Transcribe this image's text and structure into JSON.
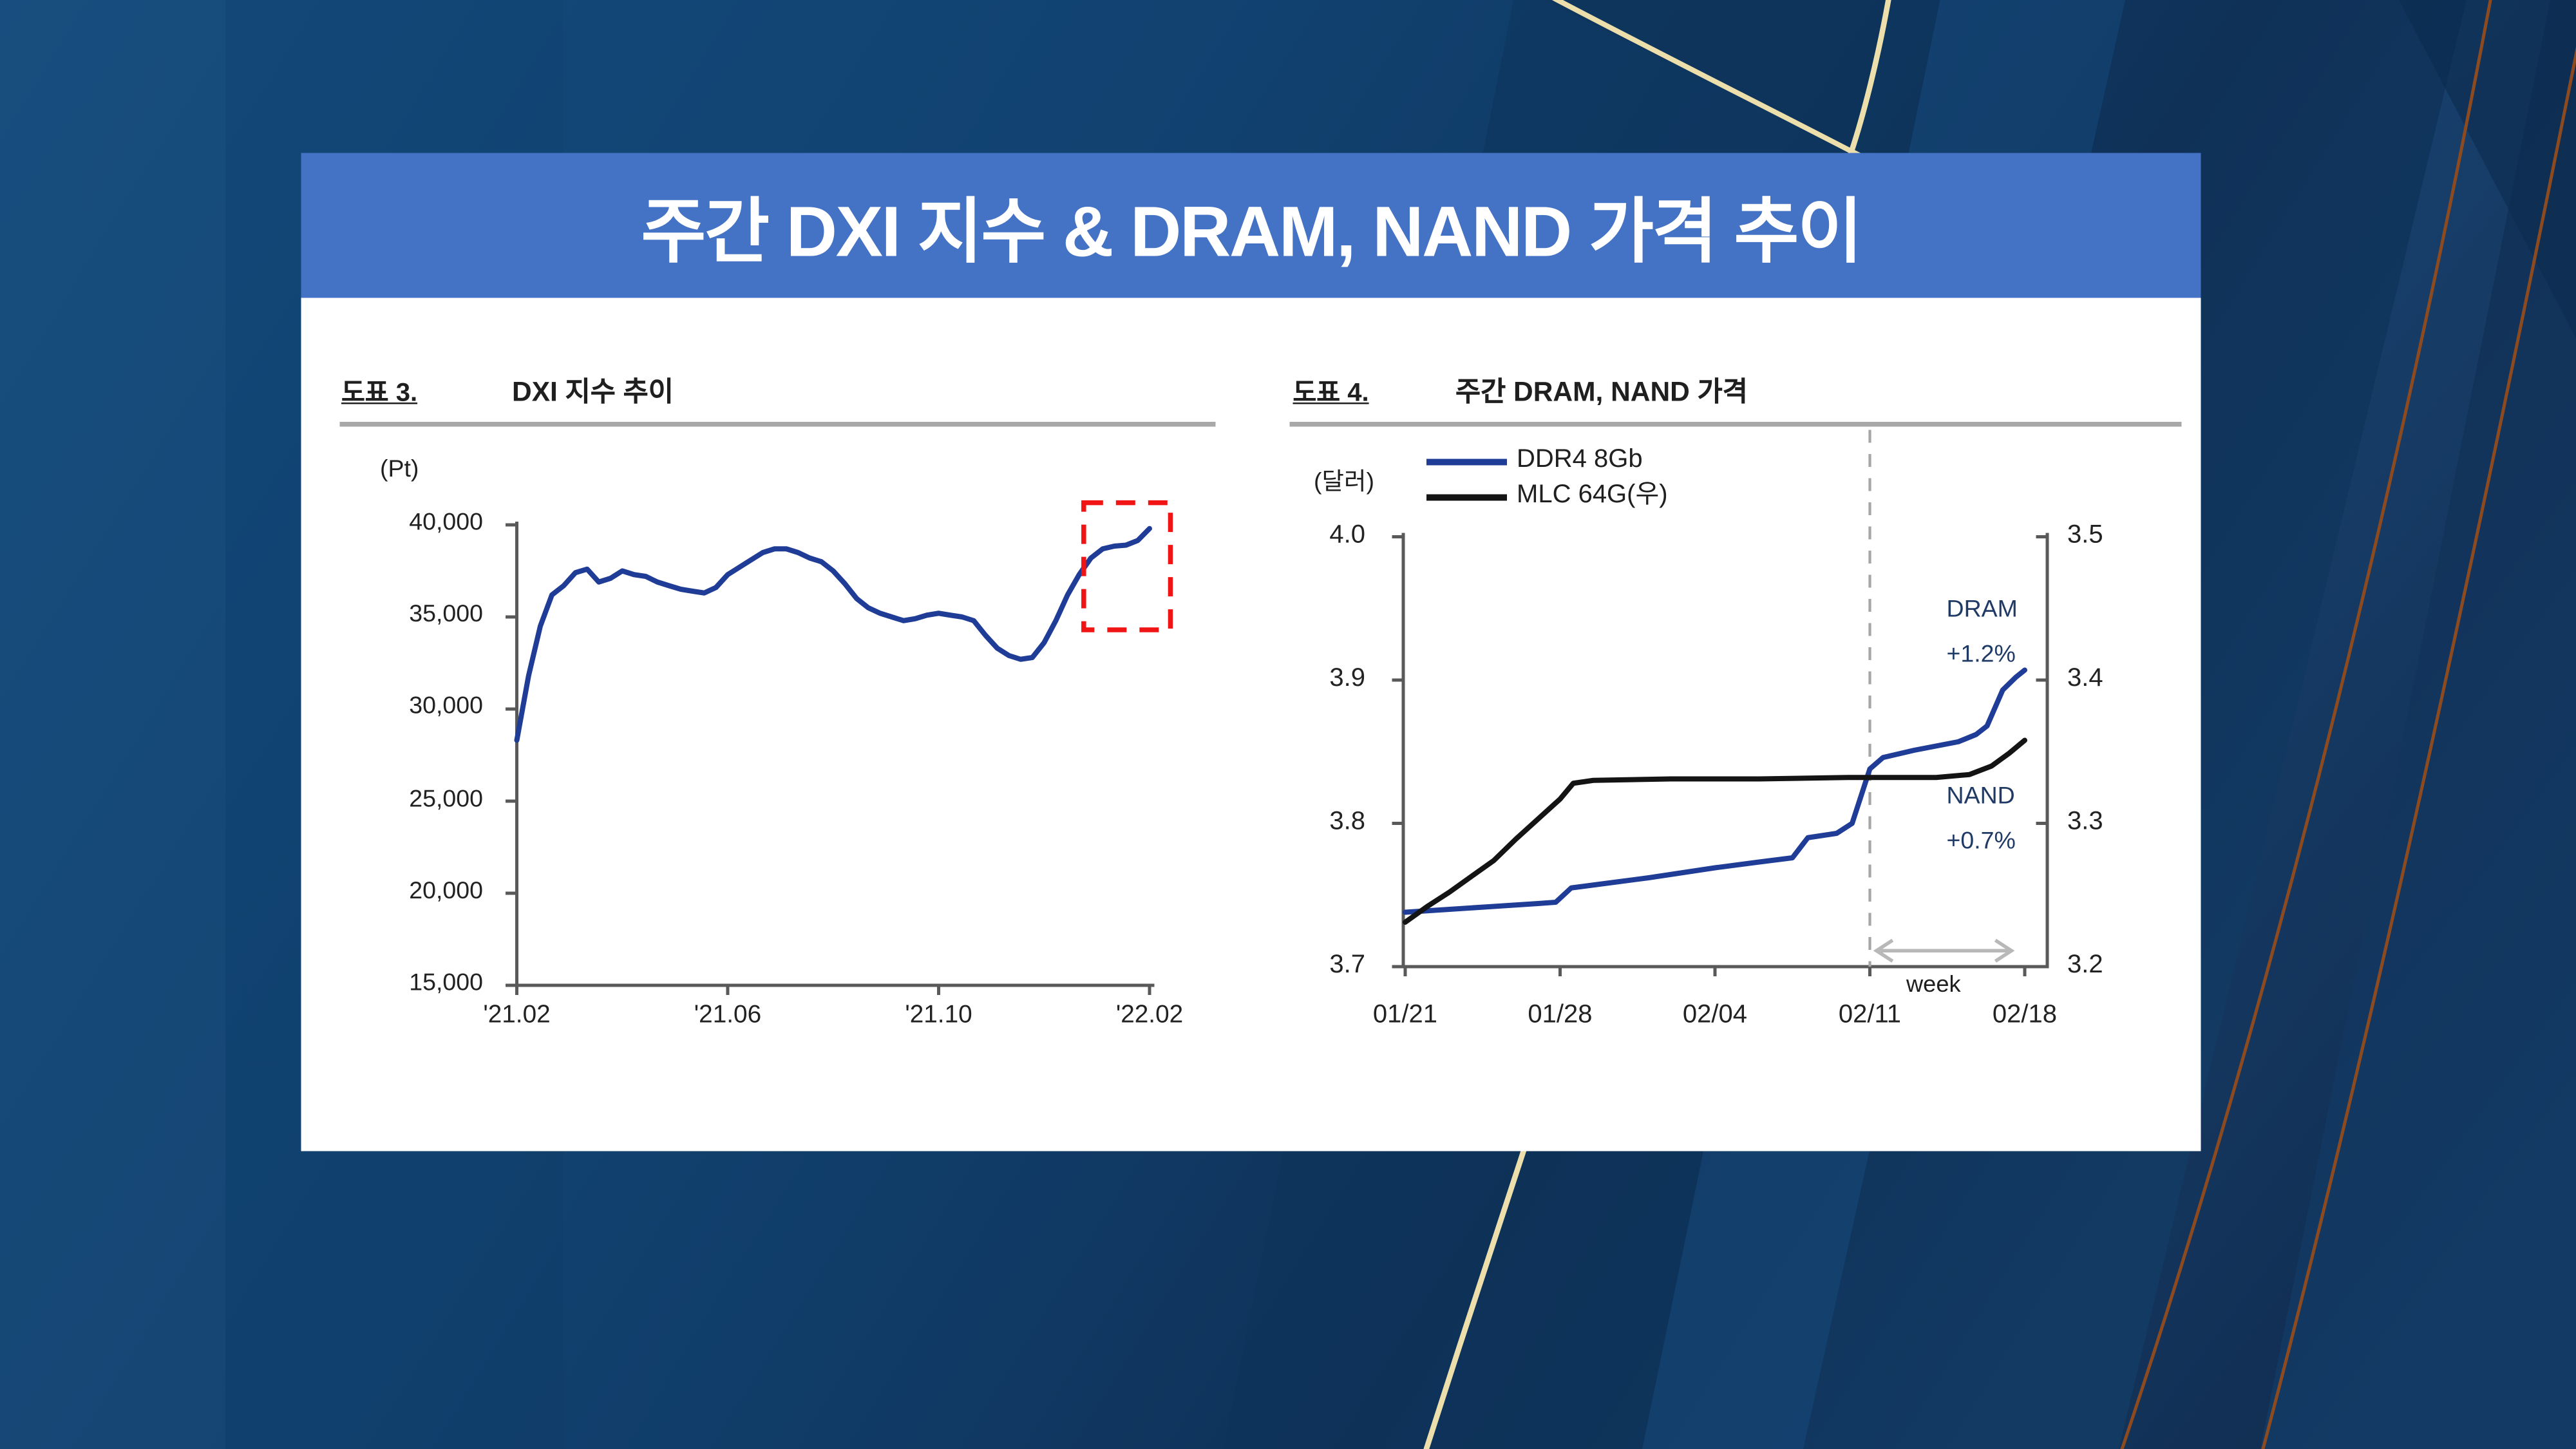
{
  "slide_title": "주간 DXI 지수 & DRAM, NAND 가격 추이",
  "colors": {
    "banner_bg": "#4472C4",
    "banner_text": "#ffffff",
    "panel_bg": "#ffffff",
    "line_blue": "#1f3c96",
    "line_black": "#141414",
    "axis_gray": "#595959",
    "rule_gray": "#a8a8a8",
    "red_box": "#f01414",
    "dashed_gray": "#a6a6a6",
    "arrow_gray": "#b8b8b8",
    "annotation_navy": "#203a66",
    "background_navy": "#124a7a",
    "gold_line": "#ecdfab",
    "sienna_line": "#8c4a21"
  },
  "left_chart": {
    "label": "도표 3.",
    "title": "DXI 지수 추이",
    "unit": "(Pt)"
  },
  "right_chart": {
    "label": "도표 4.",
    "title": "주간 DRAM, NAND 가격",
    "unit": "(달러)",
    "legend": [
      {
        "name": "DDR4 8Gb",
        "color_key": "line_blue"
      },
      {
        "name": "MLC 64G(우)",
        "color_key": "line_black"
      }
    ],
    "annotations": {
      "dram_label": "DRAM",
      "dram_change": "+1.2%",
      "nand_label": "NAND",
      "nand_change": "+0.7%",
      "week_label": "week"
    }
  },
  "chart_data": [
    {
      "type": "line",
      "title": "DXI 지수 추이",
      "ylabel": "(Pt)",
      "ylim": [
        15000,
        40000
      ],
      "grid": false,
      "y_ticks": [
        {
          "label": "40,000",
          "value": 40000
        },
        {
          "label": "35,000",
          "value": 35000
        },
        {
          "label": "30,000",
          "value": 30000
        },
        {
          "label": "25,000",
          "value": 25000
        },
        {
          "label": "20,000",
          "value": 20000
        },
        {
          "label": "15,000",
          "value": 15000
        }
      ],
      "x_ticks": [
        {
          "label": "'21.02",
          "t": 0
        },
        {
          "label": "'21.06",
          "t": 0.3333
        },
        {
          "label": "'21.10",
          "t": 0.6667
        },
        {
          "label": "'22.02",
          "t": 1
        }
      ],
      "series": [
        {
          "name": "DXI index",
          "color_key": "line_blue",
          "values": [
            28300,
            31800,
            34500,
            36200,
            36700,
            37400,
            37600,
            36900,
            37100,
            37500,
            37300,
            37200,
            36900,
            36700,
            36500,
            36400,
            36300,
            36600,
            37300,
            37700,
            38100,
            38500,
            38700,
            38700,
            38500,
            38200,
            38000,
            37500,
            36800,
            36000,
            35500,
            35200,
            35000,
            34800,
            34900,
            35100,
            35200,
            35100,
            35000,
            34800,
            34000,
            33300,
            32900,
            32700,
            32800,
            33600,
            34800,
            36200,
            37300,
            38200,
            38700,
            38850,
            38900,
            39150,
            39800
          ]
        }
      ],
      "highlight_box": {
        "style": "red-dashed",
        "x_from_t": 0.896,
        "x_to_t": 1.033,
        "value_top": 41200,
        "value_bottom": 34300
      }
    },
    {
      "type": "line-dual-axis",
      "title": "주간 DRAM, NAND 가격",
      "left_axis": {
        "unit": "(달러)",
        "range": [
          3.7,
          4.0
        ],
        "ticks": [
          {
            "label": "4.0",
            "value": 4.0
          },
          {
            "label": "3.9",
            "value": 3.9
          },
          {
            "label": "3.8",
            "value": 3.8
          },
          {
            "label": "3.7",
            "value": 3.7
          }
        ]
      },
      "right_axis": {
        "range": [
          3.2,
          3.5
        ],
        "ticks": [
          {
            "label": "3.5",
            "value": 3.5
          },
          {
            "label": "3.4",
            "value": 3.4
          },
          {
            "label": "3.3",
            "value": 3.3
          },
          {
            "label": "3.2",
            "value": 3.2
          }
        ]
      },
      "x_range_days": [
        0,
        28
      ],
      "x_ticks": [
        {
          "label": "01/21",
          "day": 0
        },
        {
          "label": "01/28",
          "day": 7
        },
        {
          "label": "02/04",
          "day": 14
        },
        {
          "label": "02/11",
          "day": 21
        },
        {
          "label": "02/18",
          "day": 28
        }
      ],
      "dashed_vline_day": 21,
      "week_arrow_days": [
        21.3,
        27.4
      ],
      "series": [
        {
          "name": "DDR4 8Gb",
          "axis": "left",
          "color_key": "line_blue",
          "points": [
            [
              0,
              3.738
            ],
            [
              2,
              3.74
            ],
            [
              4,
              3.742
            ],
            [
              6,
              3.744
            ],
            [
              6.8,
              3.745
            ],
            [
              7.5,
              3.755
            ],
            [
              9,
              3.758
            ],
            [
              11,
              3.762
            ],
            [
              14,
              3.769
            ],
            [
              16,
              3.773
            ],
            [
              17.5,
              3.776
            ],
            [
              18.2,
              3.79
            ],
            [
              19.5,
              3.793
            ],
            [
              20.2,
              3.8
            ],
            [
              21,
              3.838
            ],
            [
              21.6,
              3.846
            ],
            [
              23,
              3.851
            ],
            [
              25,
              3.857
            ],
            [
              25.8,
              3.862
            ],
            [
              26.3,
              3.868
            ],
            [
              27,
              3.893
            ],
            [
              27.6,
              3.902
            ],
            [
              28,
              3.907
            ]
          ]
        },
        {
          "name": "MLC 64G(우)",
          "axis": "right",
          "color_key": "line_black",
          "points": [
            [
              0,
              3.231
            ],
            [
              1,
              3.242
            ],
            [
              2,
              3.252
            ],
            [
              3,
              3.263
            ],
            [
              4,
              3.274
            ],
            [
              5,
              3.289
            ],
            [
              6,
              3.303
            ],
            [
              7,
              3.317
            ],
            [
              7.6,
              3.328
            ],
            [
              8.5,
              3.33
            ],
            [
              12,
              3.331
            ],
            [
              16,
              3.331
            ],
            [
              20,
              3.332
            ],
            [
              21,
              3.332
            ],
            [
              24,
              3.332
            ],
            [
              25.5,
              3.334
            ],
            [
              26.5,
              3.34
            ],
            [
              27.3,
              3.349
            ],
            [
              28,
              3.358
            ]
          ]
        }
      ],
      "annotations": [
        {
          "text": "DRAM",
          "sub": "+1.2%"
        },
        {
          "text": "NAND",
          "sub": "+0.7%"
        }
      ]
    }
  ]
}
